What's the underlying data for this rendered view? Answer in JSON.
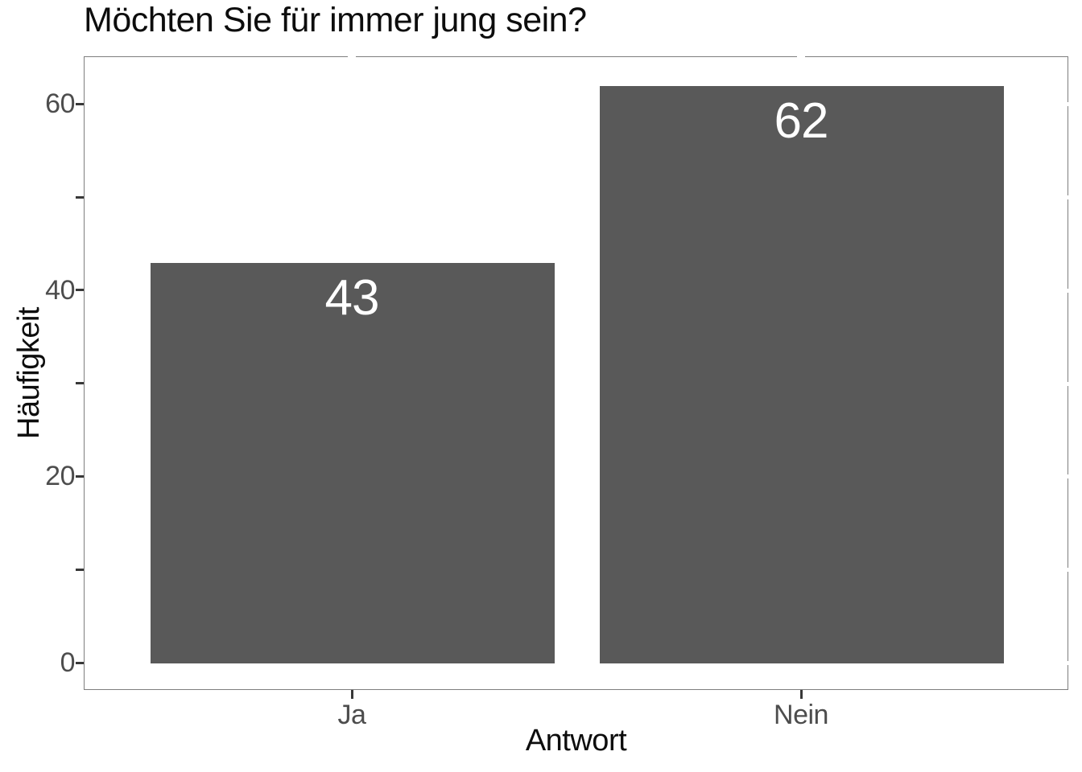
{
  "chart_data": {
    "type": "bar",
    "title": "Möchten Sie für immer jung sein?",
    "xlabel": "Antwort",
    "ylabel": "Häufigkeit",
    "categories": [
      "Ja",
      "Nein"
    ],
    "values": [
      43,
      62
    ],
    "bar_labels": [
      "43",
      "62"
    ],
    "ylim": [
      -3.1,
      65.1
    ],
    "yticks_labeled": [
      0,
      20,
      40,
      60
    ],
    "yticks_all": [
      0,
      10,
      20,
      30,
      40,
      50,
      60
    ],
    "grid": false,
    "legend": false,
    "layout_hints": {
      "bar_label_position": "inside-top",
      "axis_text_position": "left-bottom",
      "panel_border": true
    },
    "colors": {
      "bar_fill": "#595959",
      "bar_label_text": "#ffffff",
      "axis_text": "#4d4d4d",
      "axis_title_text": "#0d0d0d",
      "title_text": "#0d0d0d",
      "panel_border": "#7e7e7e",
      "tick_mark": "#383838",
      "background": "#ffffff"
    }
  }
}
